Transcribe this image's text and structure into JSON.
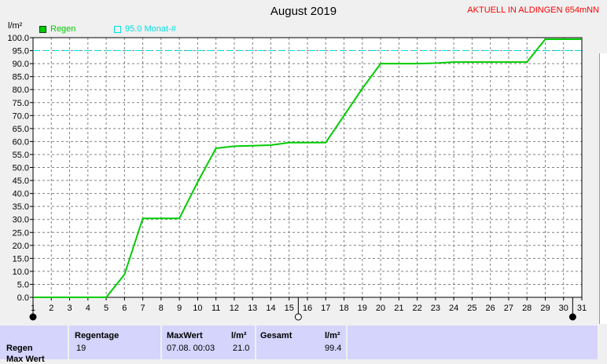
{
  "header": {
    "title": "August 2019",
    "station": "AKTUELL IN ALDINGEN 654mNN"
  },
  "legend": {
    "rain_label": "Regen",
    "rain_color": "#00cc00",
    "ref_label": "95.0 Monat-#",
    "ref_color": "#00e0e0"
  },
  "chart_data": {
    "type": "line",
    "ylabel": "l/m²",
    "ylim": [
      0,
      100
    ],
    "y_ticks": [
      "0.0",
      "5.0",
      "10.0",
      "15.0",
      "20.0",
      "25.0",
      "30.0",
      "35.0",
      "40.0",
      "45.0",
      "50.0",
      "55.0",
      "60.0",
      "65.0",
      "70.0",
      "75.0",
      "80.0",
      "85.0",
      "90.0",
      "95.0",
      "100.0"
    ],
    "x_ticks": [
      "1",
      "2",
      "3",
      "4",
      "5",
      "6",
      "7",
      "8",
      "9",
      "10",
      "11",
      "12",
      "13",
      "14",
      "15",
      "16",
      "17",
      "18",
      "19",
      "20",
      "21",
      "22",
      "23",
      "24",
      "25",
      "26",
      "27",
      "28",
      "29",
      "30",
      "31"
    ],
    "xlim": [
      1,
      31
    ],
    "reference_line": 95.0,
    "series": [
      {
        "name": "Regen",
        "x": [
          1,
          5,
          6,
          7,
          8,
          9,
          10,
          11,
          12,
          13,
          14,
          15,
          16,
          17,
          18,
          19,
          20,
          21,
          22,
          23,
          24,
          25,
          26,
          27,
          28,
          29,
          30,
          31
        ],
        "values": [
          0,
          0,
          8.8,
          30.4,
          30.4,
          30.4,
          44.4,
          57.4,
          58.2,
          58.4,
          58.6,
          59.6,
          59.6,
          59.6,
          70.0,
          80.4,
          90.0,
          90.0,
          90.0,
          90.2,
          90.6,
          90.6,
          90.6,
          90.6,
          90.6,
          99.4,
          99.4,
          99.4
        ]
      }
    ],
    "moon_markers": [
      {
        "x": 1,
        "phase": "full"
      },
      {
        "x": 15.5,
        "phase": "new"
      },
      {
        "x": 30.5,
        "phase": "full"
      }
    ],
    "grid": true
  },
  "stats": {
    "row_label": "Regen",
    "row_label2": "Max Wert",
    "regentage_header": "Regentage",
    "regentage_value": "19",
    "maxwert_header": "MaxWert",
    "maxwert_unit": "l/m²",
    "maxwert_date": "07.08.  00:03",
    "maxwert_value": "21.0",
    "gesamt_header": "Gesamt",
    "gesamt_unit": "l/m²",
    "gesamt_value": "99.4"
  }
}
